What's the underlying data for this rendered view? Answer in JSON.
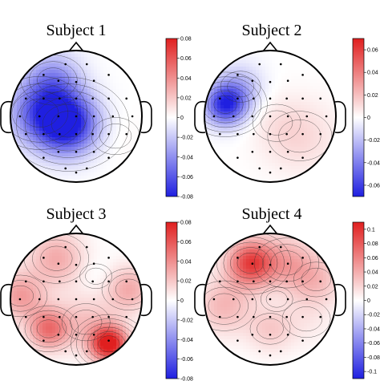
{
  "colors": {
    "negative": "#1f1fe0",
    "zero": "#ffffff",
    "positive": "#e01f1f",
    "outline": "#000000"
  },
  "chart_data": [
    {
      "type": "heatmap",
      "title": "Subject 1",
      "colorbar": {
        "range": [
          -0.08,
          0.08
        ],
        "ticks": [
          "0.08",
          "0.06",
          "0.04",
          "0.02",
          "0",
          "-0.02",
          "-0.04",
          "-0.06",
          "-0.08"
        ]
      },
      "blobs": [
        {
          "pos": [
            -0.12,
            -0.12
          ],
          "value": -0.08,
          "spread": 0.32
        },
        {
          "pos": [
            -0.55,
            0.05
          ],
          "value": -0.05,
          "spread": 0.35
        },
        {
          "pos": [
            -0.35,
            0.55
          ],
          "value": -0.035,
          "spread": 0.3
        },
        {
          "pos": [
            0.6,
            -0.3
          ],
          "value": 0.003,
          "spread": 0.3
        }
      ]
    },
    {
      "type": "heatmap",
      "title": "Subject 2",
      "colorbar": {
        "range": [
          -0.07,
          0.07
        ],
        "ticks": [
          "0.06",
          "0.04",
          "0.02",
          "0",
          "-0.02",
          "-0.04",
          "-0.06"
        ]
      },
      "blobs": [
        {
          "pos": [
            -0.68,
            0.18
          ],
          "value": -0.065,
          "spread": 0.22
        },
        {
          "pos": [
            -0.45,
            0.45
          ],
          "value": -0.02,
          "spread": 0.25
        },
        {
          "pos": [
            0.45,
            -0.3
          ],
          "value": 0.012,
          "spread": 0.4
        },
        {
          "pos": [
            0.1,
            -0.1
          ],
          "value": 0.004,
          "spread": 0.3
        }
      ]
    },
    {
      "type": "heatmap",
      "title": "Subject 3",
      "colorbar": {
        "range": [
          -0.08,
          0.08
        ],
        "ticks": [
          "0.08",
          "0.06",
          "0.04",
          "0.02",
          "0",
          "-0.02",
          "-0.04",
          "-0.06",
          "-0.08"
        ]
      },
      "blobs": [
        {
          "pos": [
            0.5,
            -0.68
          ],
          "value": 0.085,
          "spread": 0.2
        },
        {
          "pos": [
            -0.42,
            -0.45
          ],
          "value": 0.05,
          "spread": 0.22
        },
        {
          "pos": [
            -0.3,
            0.62
          ],
          "value": 0.03,
          "spread": 0.3
        },
        {
          "pos": [
            -0.85,
            0.05
          ],
          "value": 0.035,
          "spread": 0.25
        },
        {
          "pos": [
            0.8,
            0.15
          ],
          "value": 0.03,
          "spread": 0.25
        },
        {
          "pos": [
            0.15,
            -0.35
          ],
          "value": 0.02,
          "spread": 0.3
        },
        {
          "pos": [
            0.3,
            0.35
          ],
          "value": -0.005,
          "spread": 0.2
        }
      ]
    },
    {
      "type": "heatmap",
      "title": "Subject 4",
      "colorbar": {
        "range": [
          -0.11,
          0.11
        ],
        "ticks": [
          "0.1",
          "0.08",
          "0.06",
          "0.04",
          "0.02",
          "0",
          "-0.02",
          "-0.04",
          "-0.06",
          "-0.08",
          "-0.1"
        ]
      },
      "blobs": [
        {
          "pos": [
            -0.3,
            0.55
          ],
          "value": 0.09,
          "spread": 0.25
        },
        {
          "pos": [
            0.25,
            0.55
          ],
          "value": 0.04,
          "spread": 0.3
        },
        {
          "pos": [
            0.7,
            0.3
          ],
          "value": 0.03,
          "spread": 0.28
        },
        {
          "pos": [
            -0.7,
            -0.1
          ],
          "value": 0.035,
          "spread": 0.3
        },
        {
          "pos": [
            0.0,
            -0.45
          ],
          "value": 0.025,
          "spread": 0.25
        },
        {
          "pos": [
            0.55,
            -0.3
          ],
          "value": 0.01,
          "spread": 0.3
        },
        {
          "pos": [
            0.1,
            0.0
          ],
          "value": -0.003,
          "spread": 0.2
        }
      ]
    }
  ]
}
